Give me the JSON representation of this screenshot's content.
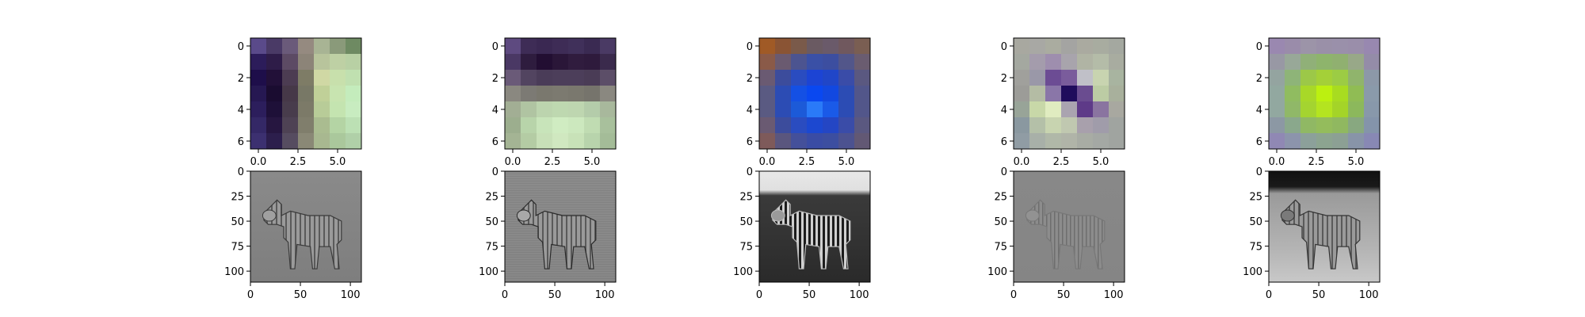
{
  "chart_data": [
    {
      "type": "heatmap",
      "title": "",
      "filter_index": 1,
      "grid_size": 7,
      "color_description": "dark purple on left columns, pale green on right columns",
      "x_ticks": [
        "0.0",
        "2.5",
        "5.0"
      ],
      "y_ticks": [
        "0",
        "2",
        "4",
        "6"
      ],
      "xlim": [
        -0.5,
        6.5
      ],
      "ylim": [
        6.5,
        -0.5
      ],
      "values": [
        [
          "#5a4a8a",
          "#4a3a66",
          "#6a5a7a",
          "#958a80",
          "#a8b494",
          "#8a9a7a",
          "#6e8a62"
        ],
        [
          "#2c1c5a",
          "#2e1c48",
          "#5c4a64",
          "#8c8478",
          "#b8c49c",
          "#bed0a4",
          "#b8d0a4"
        ],
        [
          "#1e0e4a",
          "#221038",
          "#4c3c52",
          "#7e7c66",
          "#d0d8a4",
          "#c8e0ac",
          "#c0e0b0"
        ],
        [
          "#261852",
          "#1a0c30",
          "#463848",
          "#787866",
          "#c0d098",
          "#c8e4b0",
          "#c4ecbc"
        ],
        [
          "#2c1e5c",
          "#1e1038",
          "#483c4c",
          "#7c7a68",
          "#b8cc98",
          "#c4e4b0",
          "#c8ecc0"
        ],
        [
          "#342866",
          "#261640",
          "#4e4254",
          "#807e6c",
          "#aabc90",
          "#b4d4a4",
          "#bce0b4"
        ],
        [
          "#3c3070",
          "#2c1e4c",
          "#564c60",
          "#8a8876",
          "#a8b890",
          "#aac89c",
          "#b0d0a8"
        ]
      ]
    },
    {
      "type": "heatmap",
      "title": "",
      "filter_index": 2,
      "grid_size": 7,
      "color_description": "dark purple top rows, pale green bottom rows",
      "x_ticks": [
        "0.0",
        "2.5",
        "5.0"
      ],
      "y_ticks": [
        "0",
        "2",
        "4",
        "6"
      ],
      "xlim": [
        -0.5,
        6.5
      ],
      "ylim": [
        6.5,
        -0.5
      ],
      "values": [
        [
          "#5e4a80",
          "#3e2c56",
          "#3a2852",
          "#3e2c56",
          "#40305a",
          "#3a2a52",
          "#4a3a64"
        ],
        [
          "#4a3864",
          "#2e1c3e",
          "#220e32",
          "#2a1638",
          "#301c3e",
          "#2e1a3c",
          "#3a2a4c"
        ],
        [
          "#6a5a78",
          "#524460",
          "#4a3c58",
          "#4c3e5a",
          "#4c3e5a",
          "#4a3c56",
          "#5c4e68"
        ],
        [
          "#8a8880",
          "#7c7a74",
          "#7a786e",
          "#7c7a70",
          "#7a786e",
          "#76746c",
          "#8a8880"
        ],
        [
          "#a2ae94",
          "#b0c4a2",
          "#bcd4ae",
          "#bed8b0",
          "#bed6b0",
          "#b4ccaa",
          "#a8b89c"
        ],
        [
          "#9cae8e",
          "#b8d4aa",
          "#c8e4ba",
          "#d0ecc2",
          "#cce8be",
          "#c0dcb2",
          "#a8c09c"
        ],
        [
          "#a4b494",
          "#b4cca4",
          "#c8e0b8",
          "#d0e8c0",
          "#c8e2b8",
          "#b8d4ac",
          "#a4bc98"
        ]
      ]
    },
    {
      "type": "heatmap",
      "title": "",
      "filter_index": 3,
      "grid_size": 7,
      "color_description": "orange/brown corners, blue center peaking at (4,3)",
      "x_ticks": [
        "0.0",
        "2.5",
        "5.0"
      ],
      "y_ticks": [
        "0",
        "2",
        "4",
        "6"
      ],
      "xlim": [
        -0.5,
        6.5
      ],
      "ylim": [
        6.5,
        -0.5
      ],
      "values": [
        [
          "#a05a26",
          "#8a5434",
          "#7a5a4a",
          "#6a5a62",
          "#6a5a6a",
          "#70585e",
          "#7a5e52"
        ],
        [
          "#8a5a48",
          "#6a5a70",
          "#4c5490",
          "#3a50a6",
          "#3c4ea0",
          "#52568a",
          "#6a5c70"
        ],
        [
          "#6a5a72",
          "#3c4c9c",
          "#2a4cc0",
          "#1c44d4",
          "#2046c8",
          "#3a4ca8",
          "#5a5880"
        ],
        [
          "#5a5a82",
          "#2c4cb4",
          "#1450e4",
          "#0a48f0",
          "#1248e0",
          "#2c4cb4",
          "#52568a"
        ],
        [
          "#5a5a82",
          "#2c4cb4",
          "#1c5ad8",
          "#2a7af8",
          "#1a5ae8",
          "#2c4cb4",
          "#52568a"
        ],
        [
          "#6a5a72",
          "#3c4c9c",
          "#2a4cc0",
          "#1c48d0",
          "#2446c4",
          "#3a4ca8",
          "#5a5880"
        ],
        [
          "#7e5a5a",
          "#5a567e",
          "#44509a",
          "#3a4ca4",
          "#3c4ea0",
          "#4c5290",
          "#625874"
        ]
      ]
    },
    {
      "type": "heatmap",
      "title": "",
      "filter_index": 4,
      "grid_size": 7,
      "color_description": "grey/green background with dark purple diagonal and pale yellow spot",
      "x_ticks": [
        "0.0",
        "2.5",
        "5.0"
      ],
      "y_ticks": [
        "0",
        "2",
        "4",
        "6"
      ],
      "xlim": [
        -0.5,
        6.5
      ],
      "ylim": [
        6.5,
        -0.5
      ],
      "values": [
        [
          "#a8a8a0",
          "#a8a8a4",
          "#aaaca0",
          "#a4a4a2",
          "#aaaaa0",
          "#a8aca0",
          "#a4a8a0"
        ],
        [
          "#a4a8a0",
          "#a49cac",
          "#9e8eae",
          "#a8a4ac",
          "#b0b4a4",
          "#b4bca8",
          "#a8aca0"
        ],
        [
          "#a0a09c",
          "#9a98a8",
          "#6c4c94",
          "#7a5c9c",
          "#c0c0c8",
          "#c8d4b0",
          "#a8b4a0"
        ],
        [
          "#9c9c98",
          "#b4bca4",
          "#8a76a8",
          "#200c5c",
          "#6a4c90",
          "#bccca4",
          "#a8b09c"
        ],
        [
          "#98a498",
          "#c8d8a8",
          "#e0ecc0",
          "#aaa4b0",
          "#5e3a88",
          "#8a74a0",
          "#a8a8a0"
        ],
        [
          "#8a98a0",
          "#b4c0a8",
          "#c8d4b0",
          "#c0c8b0",
          "#a8a0ac",
          "#a09caa",
          "#a0a4a0"
        ],
        [
          "#909ca4",
          "#a8b0a8",
          "#b0b8a8",
          "#b0b4a8",
          "#a8aca4",
          "#a4a8a4",
          "#a0a4a0"
        ]
      ]
    },
    {
      "type": "heatmap",
      "title": "",
      "filter_index": 5,
      "grid_size": 7,
      "color_description": "purple/grey border, green rings, yellow-green center",
      "x_ticks": [
        "0.0",
        "2.5",
        "5.0"
      ],
      "y_ticks": [
        "0",
        "2",
        "4",
        "6"
      ],
      "xlim": [
        -0.5,
        6.5
      ],
      "ylim": [
        6.5,
        -0.5
      ],
      "values": [
        [
          "#9a88b0",
          "#9a8caa",
          "#9c94a8",
          "#9a90a8",
          "#9a90aa",
          "#9a8eaa",
          "#9888b0"
        ],
        [
          "#9898a4",
          "#98a898",
          "#90b078",
          "#8eb46c",
          "#90b070",
          "#98a888",
          "#948ca8"
        ],
        [
          "#94a4a0",
          "#8eb478",
          "#9cc848",
          "#a4d038",
          "#9ccc44",
          "#90b46c",
          "#8c98a8"
        ],
        [
          "#92a8a0",
          "#90bc60",
          "#a8d828",
          "#bcf010",
          "#a8dc20",
          "#90bc54",
          "#8a9aaa"
        ],
        [
          "#92a8a0",
          "#90b868",
          "#a4d430",
          "#b4e420",
          "#a4d428",
          "#8cb85c",
          "#8898aa"
        ],
        [
          "#8c98a4",
          "#8aa88c",
          "#90b864",
          "#94bc5c",
          "#90b860",
          "#88a880",
          "#8494aa"
        ],
        [
          "#9088b4",
          "#8c94ac",
          "#8ca09a",
          "#8ca490",
          "#8ca094",
          "#8894a8",
          "#8888b4"
        ]
      ]
    },
    {
      "type": "image",
      "title": "",
      "image_index": 1,
      "description": "grayscale edge-filtered zebra on mid-grey background",
      "style": "edge-gray",
      "x_ticks": [
        "0",
        "50",
        "100"
      ],
      "y_ticks": [
        "0",
        "25",
        "50",
        "75",
        "100"
      ],
      "xlim": [
        0,
        111
      ],
      "ylim": [
        111,
        0
      ]
    },
    {
      "type": "image",
      "title": "",
      "image_index": 2,
      "description": "grayscale horizontal-edge filtered zebra with textured background",
      "style": "edge-texture",
      "x_ticks": [
        "0",
        "50",
        "100"
      ],
      "y_ticks": [
        "0",
        "25",
        "50",
        "75",
        "100"
      ],
      "xlim": [
        0,
        111
      ],
      "ylim": [
        111,
        0
      ]
    },
    {
      "type": "image",
      "title": "",
      "image_index": 3,
      "description": "dark grayscale zebra with light sky at top and dark ground",
      "style": "dark-sky",
      "x_ticks": [
        "0",
        "50",
        "100"
      ],
      "y_ticks": [
        "0",
        "25",
        "50",
        "75",
        "100"
      ],
      "xlim": [
        0,
        111
      ],
      "ylim": [
        111,
        0
      ]
    },
    {
      "type": "image",
      "title": "",
      "image_index": 4,
      "description": "faint fine-edge zebra on flat grey background",
      "style": "faint",
      "x_ticks": [
        "0",
        "50",
        "100"
      ],
      "y_ticks": [
        "0",
        "25",
        "50",
        "75",
        "100"
      ],
      "xlim": [
        0,
        111
      ],
      "ylim": [
        111,
        0
      ]
    },
    {
      "type": "image",
      "title": "",
      "image_index": 5,
      "description": "bright grayscale zebra with dark band at top and light grass",
      "style": "bright-dark-top",
      "x_ticks": [
        "0",
        "50",
        "100"
      ],
      "y_ticks": [
        "0",
        "25",
        "50",
        "75",
        "100"
      ],
      "xlim": [
        0,
        111
      ],
      "ylim": [
        111,
        0
      ]
    }
  ]
}
